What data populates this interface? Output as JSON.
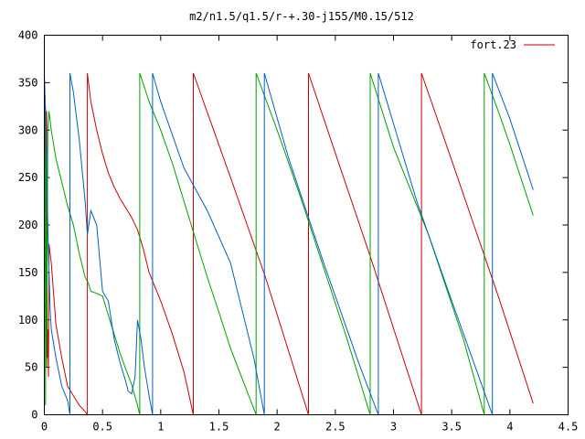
{
  "chart_data": {
    "type": "line",
    "title": "m2/n1.5/q1.5/r-+.30-j155/M0.15/512",
    "xlabel": "",
    "ylabel": "",
    "xlim": [
      0,
      4.5
    ],
    "ylim": [
      0,
      400
    ],
    "x_ticks": [
      0,
      0.5,
      1,
      1.5,
      2,
      2.5,
      3,
      3.5,
      4,
      4.5
    ],
    "x_tick_labels": [
      "0",
      "0.5",
      "1",
      "1.5",
      "2",
      "2.5",
      "3",
      "3.5",
      "4",
      "4.5"
    ],
    "y_ticks": [
      0,
      50,
      100,
      150,
      200,
      250,
      300,
      350,
      400
    ],
    "y_tick_labels": [
      "0",
      "50",
      "100",
      "150",
      "200",
      "250",
      "300",
      "350",
      "400"
    ],
    "grid": false,
    "legend": {
      "position": "top-right",
      "entries": [
        "fort.23"
      ]
    },
    "series": [
      {
        "name": "fort.23",
        "color": "#cc0000",
        "x": [
          0.0,
          0.01,
          0.015,
          0.02,
          0.025,
          0.03,
          0.035,
          0.04,
          0.06,
          0.1,
          0.15,
          0.2,
          0.25,
          0.3,
          0.36,
          0.37,
          0.37,
          0.4,
          0.45,
          0.5,
          0.55,
          0.6,
          0.65,
          0.7,
          0.75,
          0.8,
          0.85,
          0.9,
          1.0,
          1.1,
          1.2,
          1.28,
          1.28,
          1.6,
          1.9,
          2.27,
          2.27,
          2.5,
          2.8,
          3.24,
          3.24,
          3.5,
          3.9,
          4.2
        ],
        "y": [
          350,
          320,
          180,
          320,
          60,
          90,
          40,
          180,
          160,
          95,
          60,
          30,
          20,
          10,
          2,
          0,
          360,
          330,
          300,
          275,
          255,
          240,
          228,
          218,
          208,
          195,
          175,
          150,
          120,
          85,
          45,
          0,
          360,
          250,
          145,
          0,
          360,
          276,
          167,
          0,
          360,
          268,
          125,
          12
        ]
      },
      {
        "name": "",
        "color": "#00a000",
        "x": [
          0.005,
          0.01,
          0.015,
          0.02,
          0.03,
          0.04,
          0.06,
          0.1,
          0.15,
          0.2,
          0.25,
          0.3,
          0.35,
          0.38,
          0.4,
          0.45,
          0.5,
          0.55,
          0.6,
          0.65,
          0.7,
          0.75,
          0.8,
          0.82,
          0.82,
          0.9,
          1.0,
          1.1,
          1.2,
          1.3,
          1.4,
          1.5,
          1.6,
          1.7,
          1.82,
          1.82,
          2.0,
          2.2,
          2.4,
          2.6,
          2.8,
          2.8,
          3.0,
          3.3,
          3.6,
          3.78,
          3.78,
          3.9,
          4.0,
          4.2
        ],
        "y": [
          330,
          10,
          280,
          50,
          300,
          320,
          300,
          270,
          245,
          220,
          200,
          170,
          145,
          138,
          130,
          128,
          125,
          105,
          85,
          65,
          48,
          32,
          10,
          0,
          360,
          330,
          300,
          265,
          225,
          185,
          145,
          108,
          70,
          38,
          0,
          360,
          300,
          230,
          155,
          80,
          0,
          360,
          282,
          190,
          80,
          0,
          360,
          320,
          285,
          210
        ]
      },
      {
        "name": "",
        "color": "#0060c0",
        "x": [
          0.0,
          0.005,
          0.01,
          0.02,
          0.03,
          0.04,
          0.05,
          0.06,
          0.1,
          0.15,
          0.2,
          0.22,
          0.22,
          0.25,
          0.3,
          0.35,
          0.37,
          0.4,
          0.45,
          0.5,
          0.55,
          0.6,
          0.65,
          0.7,
          0.72,
          0.75,
          0.78,
          0.8,
          0.83,
          0.86,
          0.9,
          0.93,
          0.93,
          1.0,
          1.2,
          1.4,
          1.6,
          1.8,
          1.89,
          1.89,
          2.1,
          2.4,
          2.7,
          2.87,
          2.87,
          3.2,
          3.5,
          3.85,
          3.85,
          4.0,
          4.2
        ],
        "y": [
          360,
          340,
          320,
          260,
          200,
          150,
          110,
          90,
          60,
          30,
          15,
          0,
          360,
          340,
          290,
          225,
          190,
          215,
          200,
          130,
          120,
          80,
          55,
          35,
          25,
          22,
          40,
          100,
          80,
          50,
          20,
          0,
          360,
          330,
          260,
          215,
          160,
          60,
          0,
          360,
          270,
          160,
          55,
          0,
          360,
          225,
          120,
          0,
          360,
          312,
          237
        ]
      }
    ]
  }
}
